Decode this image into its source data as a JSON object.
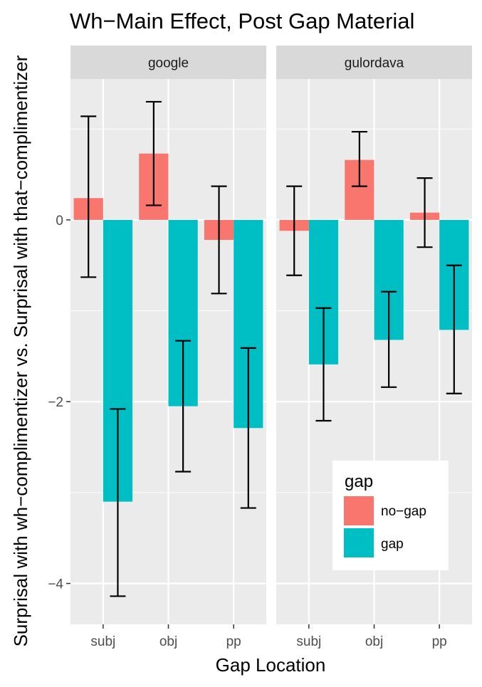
{
  "chart_data": {
    "type": "bar",
    "title": "Wh−Main Effect, Post Gap Material",
    "xlabel": "Gap Location",
    "ylabel": "Surprisal with wh−complimentizer vs. Surprisal with that−complimentizer",
    "categories": [
      "subj",
      "obj",
      "pp"
    ],
    "ylim": [
      -4.45,
      1.55
    ],
    "yticks": [
      0,
      -2,
      -4
    ],
    "ytick_labels": [
      "0",
      "−2",
      "−4"
    ],
    "grid": true,
    "legend": {
      "title": "gap",
      "position": "bottom-right inside",
      "entries": [
        "no−gap",
        "gap"
      ]
    },
    "colors": {
      "no-gap": "#F8766D",
      "gap": "#00BFC4",
      "panel_bg": "#EBEBEB",
      "strip_bg": "#D9D9D9",
      "grid": "#FFFFFF"
    },
    "facets": [
      {
        "name": "google",
        "series": [
          {
            "name": "no−gap",
            "values": [
              0.24,
              0.73,
              -0.22
            ],
            "ci_low": [
              -0.63,
              0.16,
              -0.81
            ],
            "ci_high": [
              1.14,
              1.3,
              0.37
            ]
          },
          {
            "name": "gap",
            "values": [
              -3.1,
              -2.05,
              -2.29
            ],
            "ci_low": [
              -4.14,
              -2.77,
              -3.17
            ],
            "ci_high": [
              -2.08,
              -1.33,
              -1.41
            ]
          }
        ]
      },
      {
        "name": "gulordava",
        "series": [
          {
            "name": "no−gap",
            "values": [
              -0.12,
              0.66,
              0.08
            ],
            "ci_low": [
              -0.61,
              0.37,
              -0.3
            ],
            "ci_high": [
              0.37,
              0.97,
              0.46
            ]
          },
          {
            "name": "gap",
            "values": [
              -1.59,
              -1.32,
              -1.21
            ],
            "ci_low": [
              -2.21,
              -1.84,
              -1.91
            ],
            "ci_high": [
              -0.97,
              -0.79,
              -0.5
            ]
          }
        ]
      }
    ]
  }
}
